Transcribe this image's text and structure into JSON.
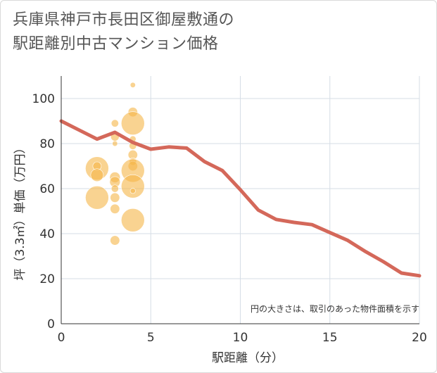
{
  "title_line1": "兵庫県神戸市長田区御屋敷通の",
  "title_line2": "駅距離別中古マンション価格",
  "chart_data": {
    "type": "scatter",
    "xlabel": "駅距離（分）",
    "ylabel": "坪（3.3㎡）単価（万円）",
    "xlim": [
      0,
      20
    ],
    "ylim": [
      0,
      110
    ],
    "x_ticks": [
      0,
      5,
      10,
      15,
      20
    ],
    "y_ticks": [
      0,
      20,
      40,
      60,
      80,
      100
    ],
    "grid": true,
    "note": "円の大きさは、取引のあった物件面積を示す",
    "bubble_color": "#f5b548",
    "line_color": "#d4685a",
    "bubbles": [
      {
        "x": 2,
        "y": 69,
        "size": 22
      },
      {
        "x": 2,
        "y": 70,
        "size": 8
      },
      {
        "x": 2,
        "y": 66,
        "size": 12
      },
      {
        "x": 2,
        "y": 56,
        "size": 22
      },
      {
        "x": 3,
        "y": 89,
        "size": 7
      },
      {
        "x": 3,
        "y": 83,
        "size": 8
      },
      {
        "x": 3,
        "y": 80,
        "size": 5
      },
      {
        "x": 3,
        "y": 65,
        "size": 10
      },
      {
        "x": 3,
        "y": 63,
        "size": 10
      },
      {
        "x": 3,
        "y": 60,
        "size": 7
      },
      {
        "x": 3,
        "y": 56,
        "size": 9
      },
      {
        "x": 3,
        "y": 51,
        "size": 9
      },
      {
        "x": 3,
        "y": 37,
        "size": 9
      },
      {
        "x": 4,
        "y": 106,
        "size": 5
      },
      {
        "x": 4,
        "y": 94,
        "size": 9
      },
      {
        "x": 4,
        "y": 89,
        "size": 22
      },
      {
        "x": 4,
        "y": 82,
        "size": 6
      },
      {
        "x": 4,
        "y": 79,
        "size": 7
      },
      {
        "x": 4,
        "y": 75,
        "size": 9
      },
      {
        "x": 4,
        "y": 72,
        "size": 7
      },
      {
        "x": 4,
        "y": 70,
        "size": 9
      },
      {
        "x": 4,
        "y": 68,
        "size": 22
      },
      {
        "x": 4,
        "y": 61,
        "size": 22
      },
      {
        "x": 4,
        "y": 59,
        "size": 5
      },
      {
        "x": 4,
        "y": 46,
        "size": 22
      }
    ],
    "line": {
      "x": [
        0,
        1,
        2,
        3,
        4,
        5,
        6,
        7,
        8,
        9,
        10,
        11,
        12,
        13,
        14,
        15,
        16,
        17,
        18,
        19,
        20
      ],
      "y": [
        90,
        86,
        82,
        85,
        80.5,
        77.5,
        78.5,
        78,
        72,
        68,
        59.5,
        50.5,
        46.3,
        45,
        44,
        40.5,
        37,
        32,
        27.5,
        22.5,
        21.3
      ]
    }
  }
}
